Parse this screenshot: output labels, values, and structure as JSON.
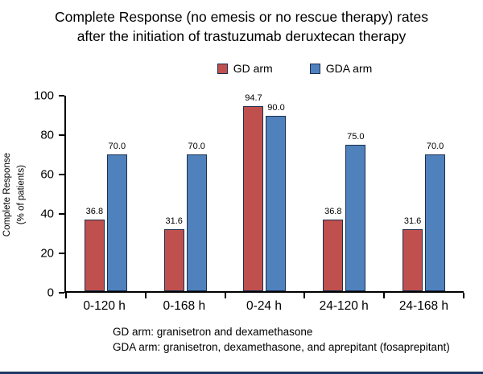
{
  "title_lines": [
    "Complete Response (no emesis or no rescue therapy) rates",
    "after the initiation of trastuzumab deruxtecan therapy"
  ],
  "chart_data": {
    "type": "bar",
    "categories": [
      "0-120 h",
      "0-168 h",
      "0-24 h",
      "24-120 h",
      "24-168 h"
    ],
    "series": [
      {
        "name": "GD arm",
        "color": "#C0504D",
        "values": [
          36.8,
          31.6,
          94.7,
          36.8,
          31.6
        ]
      },
      {
        "name": "GDA arm",
        "color": "#4F81BD",
        "values": [
          70.0,
          70.0,
          90.0,
          75.0,
          70.0
        ]
      }
    ],
    "title": "Complete Response (no emesis or no rescue therapy) rates after the initiation of trastuzumab deruxtecan therapy",
    "xlabel": "",
    "ylabel": "Complete Response (% of patients)",
    "ylabel_lines": [
      "Complete Response",
      "(% of patients)"
    ],
    "ylim": [
      0,
      100
    ],
    "yticks": [
      0,
      20,
      40,
      60,
      80,
      100
    ],
    "grid": false,
    "legend_position": "top",
    "bar_border_color": "#1c2f4e"
  },
  "footnotes": [
    "GD arm: granisetron and dexamethasone",
    "GDA arm: granisetron, dexamethasone, and aprepitant (fosaprepitant)"
  ]
}
